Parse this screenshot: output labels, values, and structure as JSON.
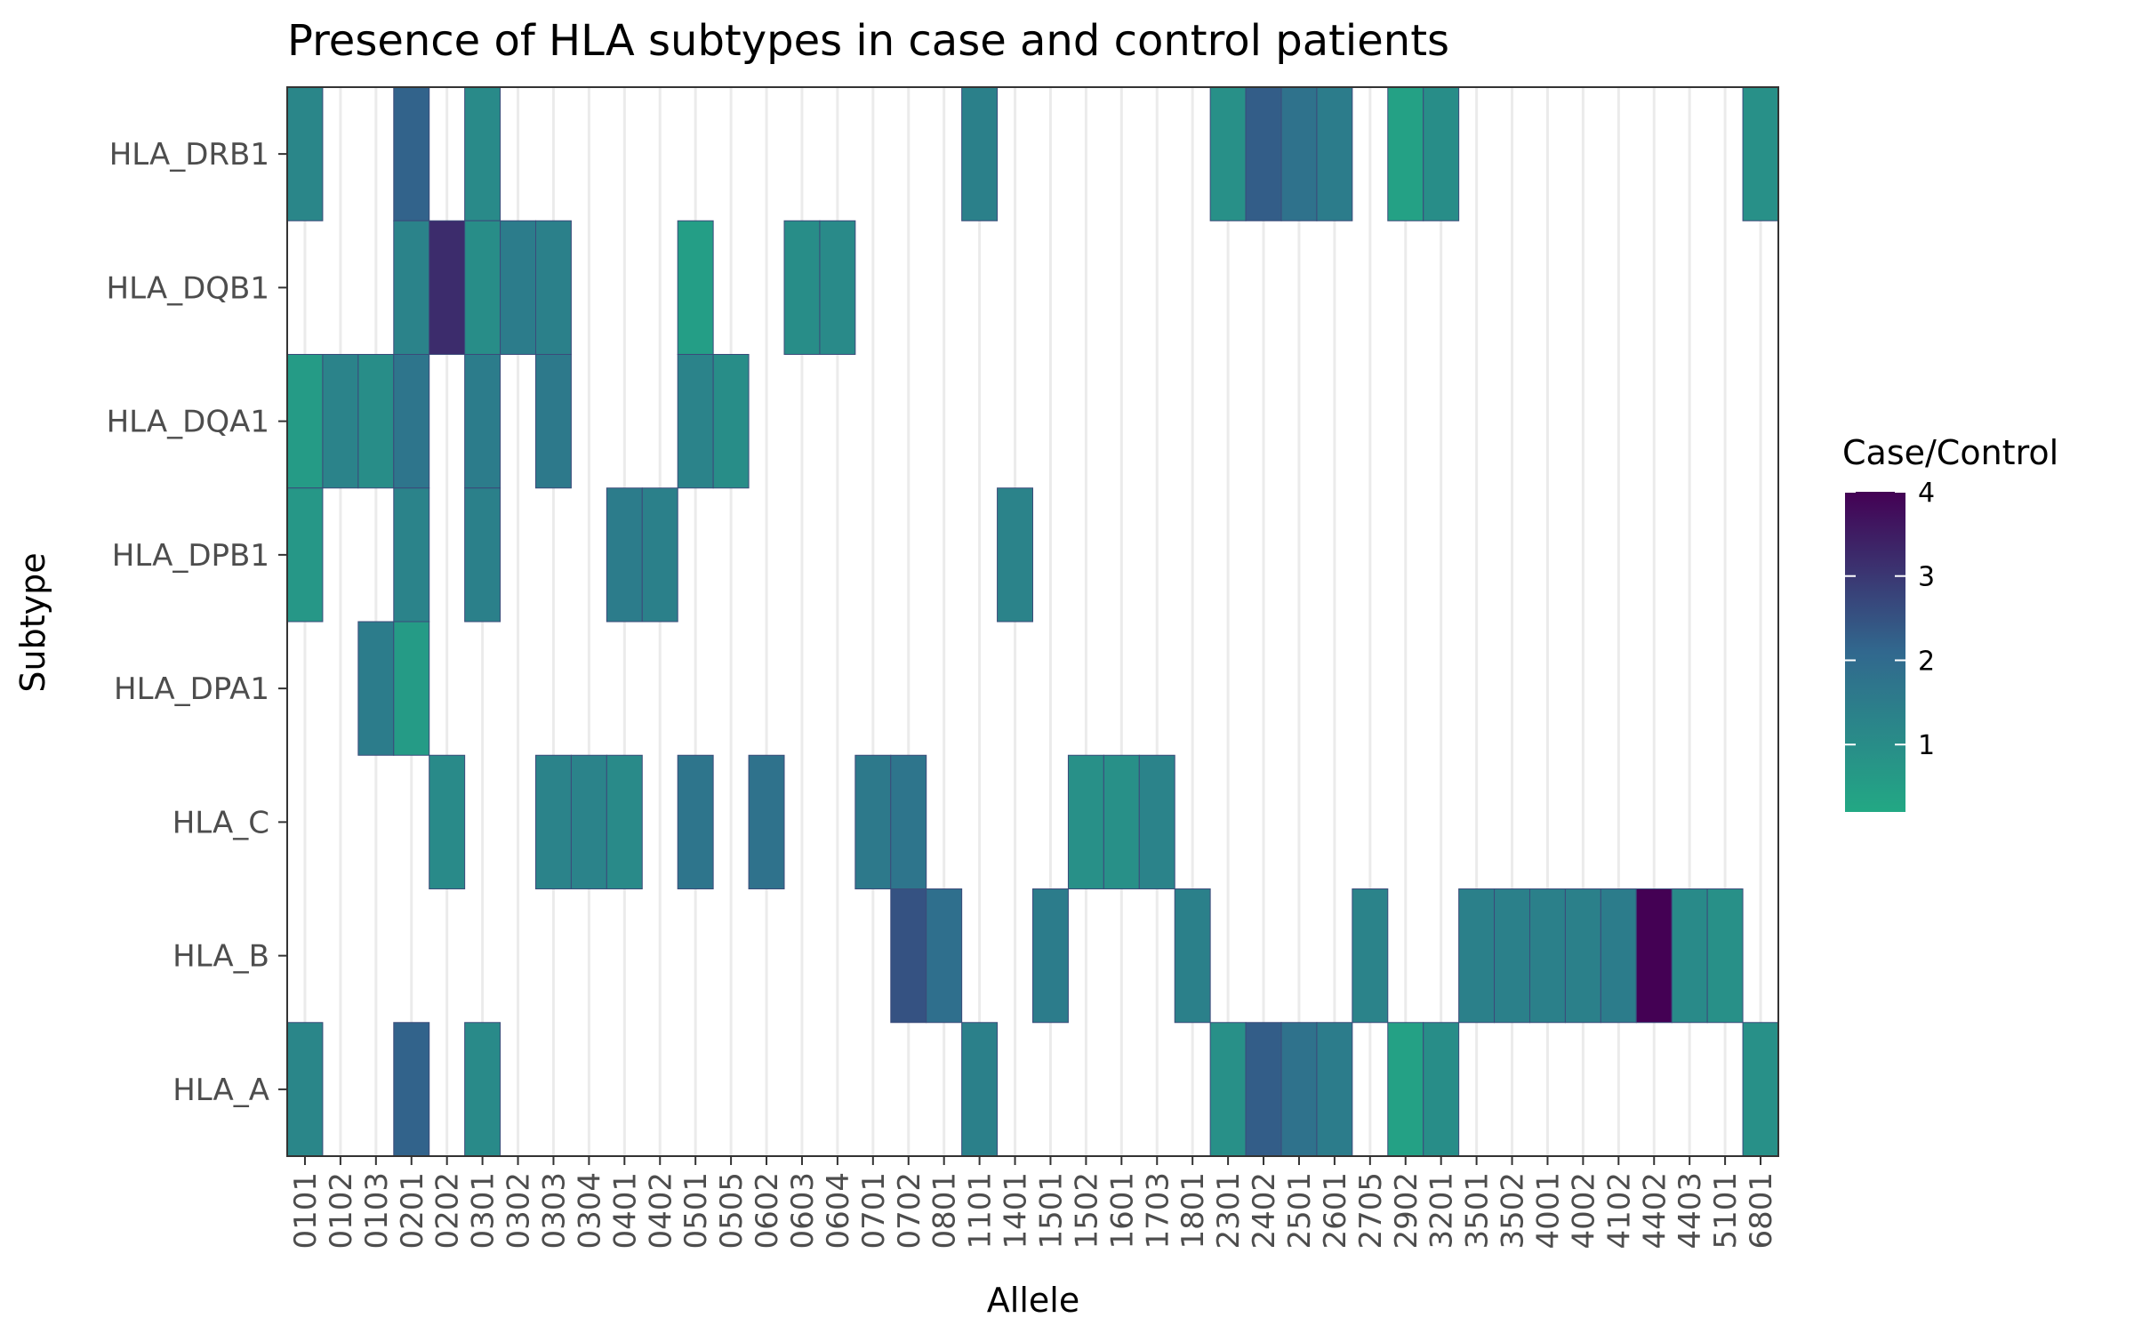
{
  "chart_data": {
    "type": "heatmap",
    "title": "Presence of HLA subtypes in case and control patients",
    "xlabel": "Allele",
    "ylabel": "Subtype",
    "x_categories": [
      "0101",
      "0102",
      "0103",
      "0201",
      "0202",
      "0301",
      "0302",
      "0303",
      "0304",
      "0401",
      "0402",
      "0501",
      "0505",
      "0602",
      "0603",
      "0604",
      "0701",
      "0702",
      "0801",
      "1101",
      "1401",
      "1501",
      "1502",
      "1601",
      "1703",
      "1801",
      "2301",
      "2402",
      "2501",
      "2601",
      "2705",
      "2902",
      "3201",
      "3501",
      "3502",
      "4001",
      "4002",
      "4102",
      "4402",
      "4403",
      "5101",
      "6801"
    ],
    "y_categories": [
      "HLA_A",
      "HLA_B",
      "HLA_C",
      "HLA_DPA1",
      "HLA_DPB1",
      "HLA_DQA1",
      "HLA_DQB1",
      "HLA_DRB1"
    ],
    "cells": [
      {
        "y": "HLA_DRB1",
        "x": "0101",
        "value": 1.2
      },
      {
        "y": "HLA_DRB1",
        "x": "0201",
        "value": 2.2
      },
      {
        "y": "HLA_DRB1",
        "x": "0301",
        "value": 1.1
      },
      {
        "y": "HLA_DRB1",
        "x": "1101",
        "value": 1.4
      },
      {
        "y": "HLA_DRB1",
        "x": "2301",
        "value": 0.9
      },
      {
        "y": "HLA_DRB1",
        "x": "2402",
        "value": 2.3
      },
      {
        "y": "HLA_DRB1",
        "x": "2501",
        "value": 1.8
      },
      {
        "y": "HLA_DRB1",
        "x": "2601",
        "value": 1.5
      },
      {
        "y": "HLA_DRB1",
        "x": "2902",
        "value": 0.4
      },
      {
        "y": "HLA_DRB1",
        "x": "3201",
        "value": 1.0
      },
      {
        "y": "HLA_DRB1",
        "x": "6801",
        "value": 0.9
      },
      {
        "y": "HLA_DQB1",
        "x": "0201",
        "value": 1.3
      },
      {
        "y": "HLA_DQB1",
        "x": "0202",
        "value": 3.2
      },
      {
        "y": "HLA_DQB1",
        "x": "0301",
        "value": 1.0
      },
      {
        "y": "HLA_DQB1",
        "x": "0302",
        "value": 1.5
      },
      {
        "y": "HLA_DQB1",
        "x": "0303",
        "value": 1.4
      },
      {
        "y": "HLA_DQB1",
        "x": "0501",
        "value": 0.5
      },
      {
        "y": "HLA_DQB1",
        "x": "0603",
        "value": 1.0
      },
      {
        "y": "HLA_DQB1",
        "x": "0604",
        "value": 1.1
      },
      {
        "y": "HLA_DQA1",
        "x": "0101",
        "value": 0.6
      },
      {
        "y": "HLA_DQA1",
        "x": "0102",
        "value": 1.3
      },
      {
        "y": "HLA_DQA1",
        "x": "0103",
        "value": 1.0
      },
      {
        "y": "HLA_DQA1",
        "x": "0201",
        "value": 1.7
      },
      {
        "y": "HLA_DQA1",
        "x": "0301",
        "value": 1.5
      },
      {
        "y": "HLA_DQA1",
        "x": "0303",
        "value": 1.6
      },
      {
        "y": "HLA_DQA1",
        "x": "0501",
        "value": 1.3
      },
      {
        "y": "HLA_DQA1",
        "x": "0505",
        "value": 1.0
      },
      {
        "y": "HLA_DPB1",
        "x": "0101",
        "value": 0.7
      },
      {
        "y": "HLA_DPB1",
        "x": "0201",
        "value": 1.3
      },
      {
        "y": "HLA_DPB1",
        "x": "0301",
        "value": 1.4
      },
      {
        "y": "HLA_DPB1",
        "x": "0401",
        "value": 1.5
      },
      {
        "y": "HLA_DPB1",
        "x": "0402",
        "value": 1.4
      },
      {
        "y": "HLA_DPB1",
        "x": "1401",
        "value": 1.3
      },
      {
        "y": "HLA_DPA1",
        "x": "0103",
        "value": 1.5
      },
      {
        "y": "HLA_DPA1",
        "x": "0201",
        "value": 0.6
      },
      {
        "y": "HLA_C",
        "x": "0202",
        "value": 1.1
      },
      {
        "y": "HLA_C",
        "x": "0303",
        "value": 1.3
      },
      {
        "y": "HLA_C",
        "x": "0304",
        "value": 1.3
      },
      {
        "y": "HLA_C",
        "x": "0401",
        "value": 1.1
      },
      {
        "y": "HLA_C",
        "x": "0501",
        "value": 1.7
      },
      {
        "y": "HLA_C",
        "x": "0602",
        "value": 1.8
      },
      {
        "y": "HLA_C",
        "x": "0701",
        "value": 1.6
      },
      {
        "y": "HLA_C",
        "x": "0702",
        "value": 1.7
      },
      {
        "y": "HLA_C",
        "x": "1502",
        "value": 0.9
      },
      {
        "y": "HLA_C",
        "x": "1601",
        "value": 0.9
      },
      {
        "y": "HLA_C",
        "x": "1703",
        "value": 1.3
      },
      {
        "y": "HLA_B",
        "x": "0702",
        "value": 2.5
      },
      {
        "y": "HLA_B",
        "x": "0801",
        "value": 1.9
      },
      {
        "y": "HLA_B",
        "x": "1501",
        "value": 1.5
      },
      {
        "y": "HLA_B",
        "x": "1801",
        "value": 1.4
      },
      {
        "y": "HLA_B",
        "x": "2705",
        "value": 1.3
      },
      {
        "y": "HLA_B",
        "x": "3501",
        "value": 1.4
      },
      {
        "y": "HLA_B",
        "x": "3502",
        "value": 1.4
      },
      {
        "y": "HLA_B",
        "x": "4001",
        "value": 1.4
      },
      {
        "y": "HLA_B",
        "x": "4002",
        "value": 1.4
      },
      {
        "y": "HLA_B",
        "x": "4102",
        "value": 1.5
      },
      {
        "y": "HLA_B",
        "x": "4402",
        "value": 4.0
      },
      {
        "y": "HLA_B",
        "x": "4403",
        "value": 1.1
      },
      {
        "y": "HLA_B",
        "x": "5101",
        "value": 0.9
      },
      {
        "y": "HLA_A",
        "x": "0101",
        "value": 1.2
      },
      {
        "y": "HLA_A",
        "x": "0201",
        "value": 2.2
      },
      {
        "y": "HLA_A",
        "x": "0301",
        "value": 1.1
      },
      {
        "y": "HLA_A",
        "x": "1101",
        "value": 1.4
      },
      {
        "y": "HLA_A",
        "x": "2301",
        "value": 0.9
      },
      {
        "y": "HLA_A",
        "x": "2402",
        "value": 2.3
      },
      {
        "y": "HLA_A",
        "x": "2501",
        "value": 1.8
      },
      {
        "y": "HLA_A",
        "x": "2601",
        "value": 1.5
      },
      {
        "y": "HLA_A",
        "x": "2902",
        "value": 0.4
      },
      {
        "y": "HLA_A",
        "x": "3201",
        "value": 1.0
      },
      {
        "y": "HLA_A",
        "x": "6801",
        "value": 0.9
      }
    ],
    "legend": {
      "title": "Case/Control",
      "ticks": [
        1,
        2,
        3,
        4
      ],
      "range": [
        0.2,
        4.0
      ],
      "colors": {
        "low": "#22a884",
        "mid": "#31688e",
        "high": "#440154"
      }
    },
    "grid": true,
    "colors": {
      "background": "#ffffff",
      "panel_border": "#333333",
      "grid": "#ebebeb",
      "cell_border": "#3b4b7a"
    }
  }
}
